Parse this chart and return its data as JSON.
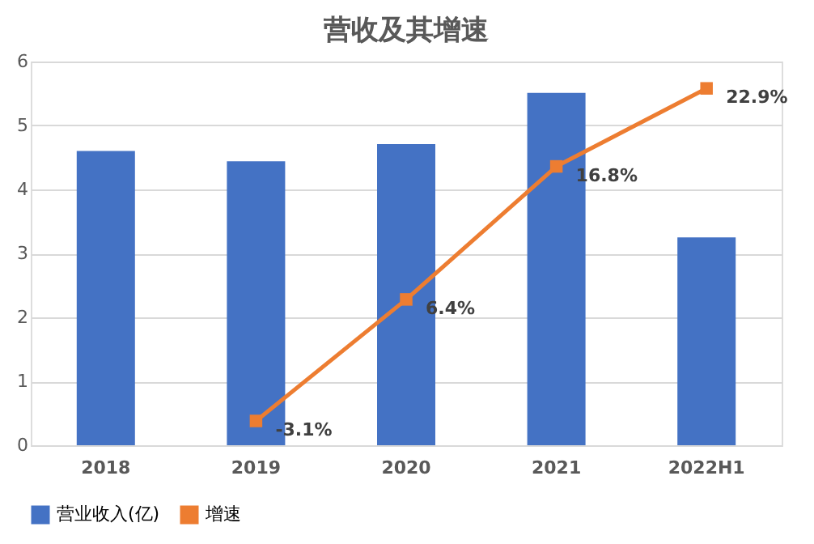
{
  "chart_data": {
    "type": "bar",
    "title": "营收及其增速",
    "categories": [
      "2018",
      "2019",
      "2020",
      "2021",
      "2022H1"
    ],
    "series": [
      {
        "name": "营业收入(亿)",
        "color": "#4472c4",
        "values": [
          4.6,
          4.44,
          4.71,
          5.51,
          3.25
        ]
      },
      {
        "name": "增速",
        "type": "line",
        "axis": "y2",
        "color": "#ed7d31",
        "marker": "square",
        "values": [
          null,
          -3.1,
          6.4,
          16.8,
          22.9
        ],
        "value_labels": [
          null,
          "-3.1%",
          "6.4%",
          "16.8%",
          "22.9%"
        ]
      }
    ],
    "ylim": [
      0,
      6
    ],
    "yticks": [
      0,
      1,
      2,
      3,
      4,
      5,
      6
    ],
    "y2lim": [
      -5,
      25
    ],
    "grid": "y",
    "legend": "bottom"
  }
}
